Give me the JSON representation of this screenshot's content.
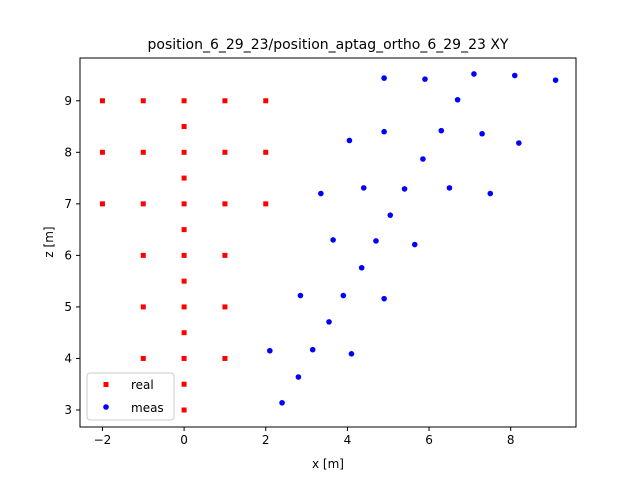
{
  "chart_data": {
    "type": "scatter",
    "title": "position_6_29_23/position_aptag_ortho_6_29_23 XY",
    "xlabel": "x [m]",
    "ylabel": "z [m]",
    "xlim": [
      -2.55,
      9.6
    ],
    "ylim": [
      2.67,
      9.83
    ],
    "xticks": [
      -2,
      0,
      2,
      4,
      6,
      8
    ],
    "yticks": [
      3,
      4,
      5,
      6,
      7,
      8,
      9
    ],
    "grid": false,
    "legend": "lower-left",
    "series": [
      {
        "name": "real",
        "color": "#ff0000",
        "marker": "square",
        "points": [
          [
            -2,
            9
          ],
          [
            -1,
            9
          ],
          [
            0,
            9
          ],
          [
            1,
            9
          ],
          [
            2,
            9
          ],
          [
            0,
            8.5
          ],
          [
            -2,
            8
          ],
          [
            -1,
            8
          ],
          [
            0,
            8
          ],
          [
            1,
            8
          ],
          [
            2,
            8
          ],
          [
            0,
            7.5
          ],
          [
            -2,
            7
          ],
          [
            -1,
            7
          ],
          [
            0,
            7
          ],
          [
            1,
            7
          ],
          [
            2,
            7
          ],
          [
            0,
            6.5
          ],
          [
            -1,
            6
          ],
          [
            0,
            6
          ],
          [
            1,
            6
          ],
          [
            0,
            5.5
          ],
          [
            -1,
            5
          ],
          [
            0,
            5
          ],
          [
            1,
            5
          ],
          [
            0,
            4.5
          ],
          [
            -1,
            4
          ],
          [
            0,
            4
          ],
          [
            1,
            4
          ],
          [
            0,
            3.5
          ],
          [
            0,
            3
          ]
        ]
      },
      {
        "name": "meas",
        "color": "#0000ff",
        "marker": "circle",
        "points": [
          [
            4.9,
            9.44
          ],
          [
            5.9,
            9.42
          ],
          [
            7.1,
            9.52
          ],
          [
            8.1,
            9.49
          ],
          [
            9.1,
            9.4
          ],
          [
            6.7,
            9.02
          ],
          [
            4.9,
            8.4
          ],
          [
            6.3,
            8.42
          ],
          [
            7.3,
            8.36
          ],
          [
            4.05,
            8.23
          ],
          [
            8.2,
            8.18
          ],
          [
            5.85,
            7.87
          ],
          [
            3.35,
            7.2
          ],
          [
            4.4,
            7.31
          ],
          [
            5.4,
            7.29
          ],
          [
            6.5,
            7.31
          ],
          [
            7.5,
            7.2
          ],
          [
            5.05,
            6.78
          ],
          [
            3.65,
            6.3
          ],
          [
            4.7,
            6.28
          ],
          [
            5.65,
            6.21
          ],
          [
            4.35,
            5.76
          ],
          [
            2.85,
            5.22
          ],
          [
            3.9,
            5.22
          ],
          [
            4.9,
            5.16
          ],
          [
            3.55,
            4.71
          ],
          [
            2.1,
            4.15
          ],
          [
            3.15,
            4.17
          ],
          [
            4.1,
            4.09
          ],
          [
            2.8,
            3.64
          ],
          [
            2.4,
            3.14
          ]
        ]
      }
    ]
  }
}
